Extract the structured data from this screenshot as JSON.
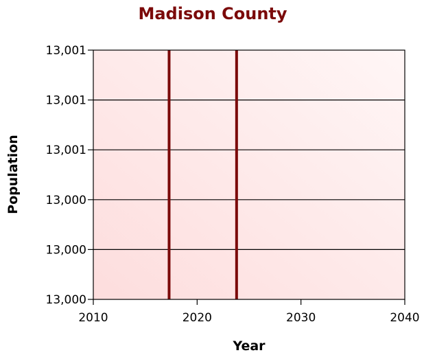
{
  "chart_data": {
    "type": "line",
    "title": "Madison County",
    "xlabel": "Year",
    "ylabel": "Population",
    "x_ticks": [
      2010,
      2020,
      2030,
      2040
    ],
    "xlim": [
      2010,
      2040
    ],
    "y_tick_labels": [
      "13,000",
      "13,000",
      "13,000",
      "13,001",
      "13,001",
      "13,001"
    ],
    "grid": "horizontal",
    "legend": "none",
    "vertical_lines": [
      {
        "x": 2017.3
      },
      {
        "x": 2023.8
      }
    ],
    "colors": {
      "title": "#7b0a0a",
      "line": "#7b0a0a",
      "background_light": "#fff6f6",
      "background_dark": "#fddddd"
    }
  }
}
